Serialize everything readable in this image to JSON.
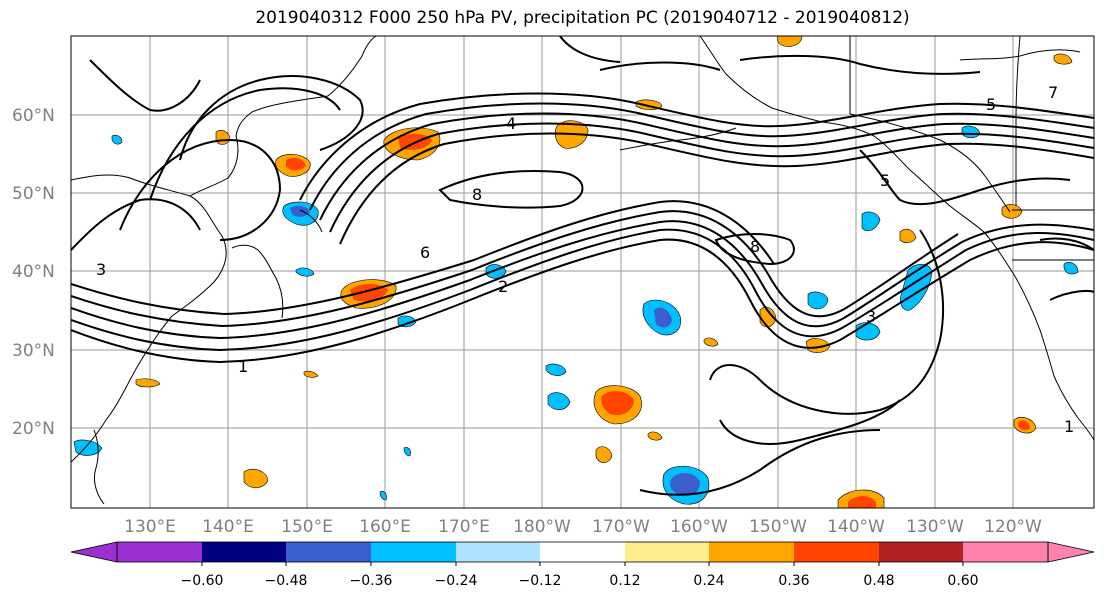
{
  "title": "2019040312 F000 250 hPa PV, precipitation PC (2019040712 - 2019040812)",
  "map": {
    "lat_labels": [
      "60°N",
      "50°N",
      "40°N",
      "30°N",
      "20°N"
    ],
    "lon_labels": [
      "130°E",
      "140°E",
      "150°E",
      "160°E",
      "170°E",
      "180°W",
      "170°W",
      "160°W",
      "150°W",
      "140°W",
      "130°W",
      "120°W"
    ],
    "contour_labels": [
      "1",
      "2",
      "3",
      "4",
      "5",
      "6",
      "7",
      "8"
    ]
  },
  "colorbar": {
    "ticks": [
      "−0.60",
      "−0.48",
      "−0.36",
      "−0.24",
      "−0.12",
      "0.12",
      "0.24",
      "0.36",
      "0.48",
      "0.60"
    ],
    "colors": [
      "#9b30d0",
      "#000080",
      "#3a5fcd",
      "#00bfff",
      "#b0e2ff",
      "#ffffff",
      "#ffec8b",
      "#ffa500",
      "#ff4500",
      "#b22222",
      "#ff82ab"
    ]
  },
  "palette": {
    "negative_main": "#00bfff",
    "negative_strong": "#3a5fcd",
    "positive_main": "#ffa500",
    "positive_strong": "#ff4500"
  }
}
